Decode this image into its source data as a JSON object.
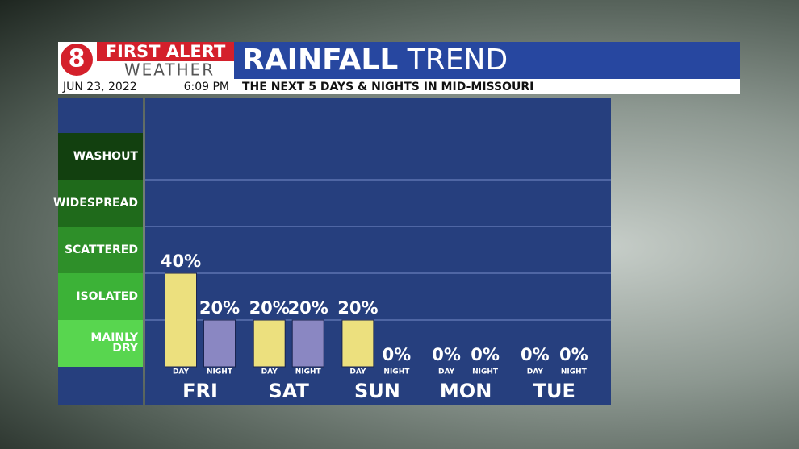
{
  "chart_data": {
    "type": "bar",
    "brand_top": "FIRST ALERT",
    "brand_bottom": "WEATHER",
    "title_bold": "RAINFALL",
    "title_light": "TREND",
    "date": "JUN 23, 2022",
    "time": "6:09 PM",
    "subtitle": "THE NEXT 5 DAYS & NIGHTS IN MID-MISSOURI",
    "categories": [
      "FRI",
      "SAT",
      "SUN",
      "MON",
      "TUE"
    ],
    "series": [
      {
        "name": "DAY",
        "color": "#ece07e",
        "values": [
          40,
          20,
          20,
          0,
          0
        ],
        "value_labels": [
          "40%",
          "20%",
          "20%",
          "0%",
          "0%"
        ]
      },
      {
        "name": "NIGHT",
        "color": "#8a87c2",
        "values": [
          20,
          20,
          0,
          0,
          0
        ],
        "value_labels": [
          "20%",
          "20%",
          "0%",
          "0%",
          "0%"
        ]
      }
    ],
    "ylim": [
      0,
      100
    ],
    "bands": [
      {
        "label": "WASHOUT",
        "from": 80,
        "to": 100,
        "color": "#12400f"
      },
      {
        "label": "WIDESPREAD",
        "from": 60,
        "to": 80,
        "color": "#1f6a1b"
      },
      {
        "label": "SCATTERED",
        "from": 40,
        "to": 60,
        "color": "#2e8f29"
      },
      {
        "label": "ISOLATED",
        "from": 20,
        "to": 40,
        "color": "#3cb237"
      },
      {
        "label": "MAINLY DRY",
        "from": 0,
        "to": 20,
        "color": "#58d64f"
      }
    ],
    "grid": true
  }
}
